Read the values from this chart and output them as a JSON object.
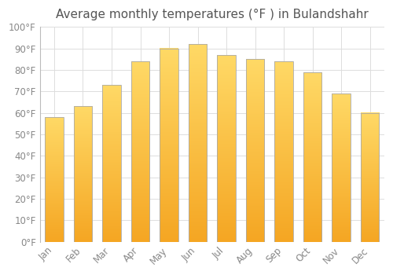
{
  "title": "Average monthly temperatures (°F ) in Bulandshahr",
  "months": [
    "Jan",
    "Feb",
    "Mar",
    "Apr",
    "May",
    "Jun",
    "Jul",
    "Aug",
    "Sep",
    "Oct",
    "Nov",
    "Dec"
  ],
  "values": [
    58,
    63,
    73,
    84,
    90,
    92,
    87,
    85,
    84,
    79,
    69,
    60
  ],
  "bar_color_bottom": "#F5A623",
  "bar_color_top": "#FFD966",
  "bar_edge_color": "#AAAAAA",
  "background_color": "#FFFFFF",
  "grid_color": "#DDDDDD",
  "ylim": [
    0,
    100
  ],
  "yticks": [
    0,
    10,
    20,
    30,
    40,
    50,
    60,
    70,
    80,
    90,
    100
  ],
  "ytick_labels": [
    "0°F",
    "10°F",
    "20°F",
    "30°F",
    "40°F",
    "50°F",
    "60°F",
    "70°F",
    "80°F",
    "90°F",
    "100°F"
  ],
  "title_fontsize": 11,
  "tick_fontsize": 8.5,
  "fig_width": 5.0,
  "fig_height": 3.5,
  "dpi": 100,
  "bar_width": 0.65
}
